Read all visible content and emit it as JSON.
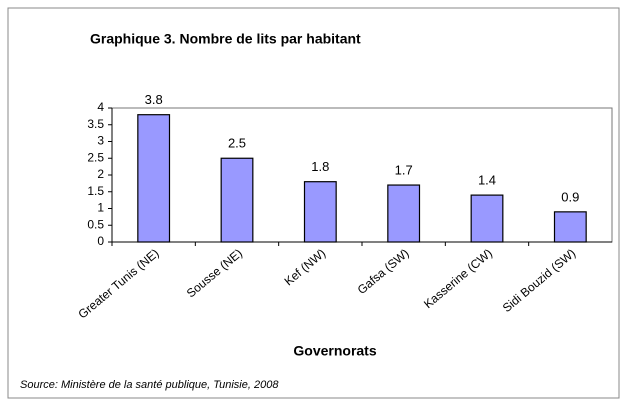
{
  "chart_data": {
    "type": "bar",
    "title": "Graphique 3. Nombre de lits par habitant",
    "categories": [
      "Greater Tunis (NE)",
      "Sousse (NE)",
      "Kef (NW)",
      "Gafsa (SW)",
      "Kasserine (CW)",
      "Sidi Bouzid (SW)"
    ],
    "values": [
      3.8,
      2.5,
      1.8,
      1.7,
      1.4,
      0.9
    ],
    "color": "#9999ff",
    "xlabel": "Governorats",
    "ylim": [
      0,
      4
    ],
    "yticks": [
      0,
      0.5,
      1,
      1.5,
      2,
      2.5,
      3,
      3.5,
      4
    ],
    "grid": false,
    "source": "Source: Ministère de la santé publique, Tunisie, 2008"
  }
}
